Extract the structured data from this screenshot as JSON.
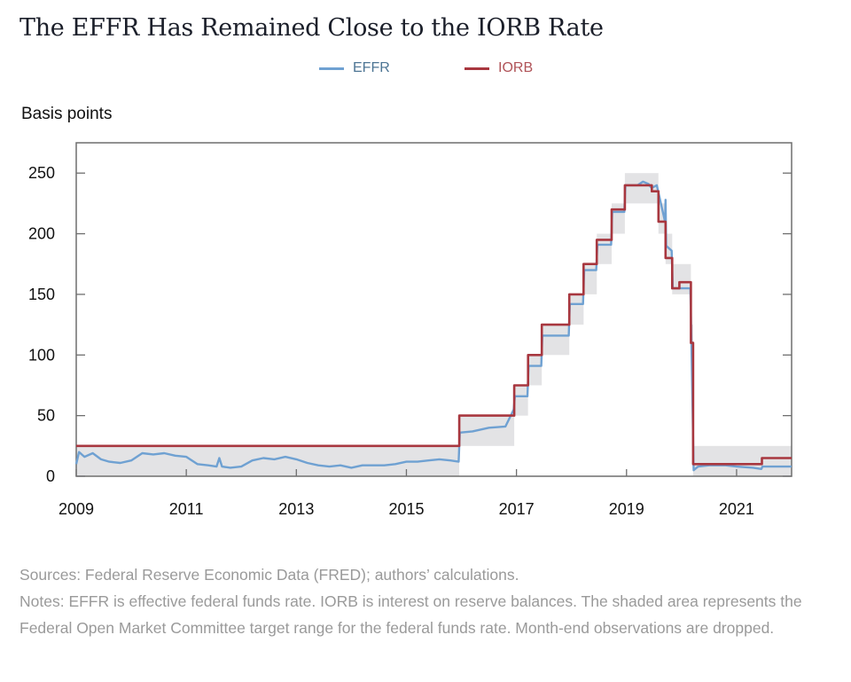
{
  "title": "The EFFR Has Remained Close to the IORB Rate",
  "legend": [
    {
      "label": "EFFR",
      "color": "#6fa1d2",
      "text_color": "#4d7594"
    },
    {
      "label": "IORB",
      "color": "#a8373f",
      "text_color": "#b05358"
    }
  ],
  "sources": "Sources: Federal Reserve Economic Data (FRED); authors’ calculations.",
  "notes": "Notes: EFFR is effective federal funds rate. IORB is interest on reserve balances. The shaded area represents the Federal Open Market Committee target range for the federal funds rate. Month-end observations are dropped.",
  "chart_data": {
    "type": "line",
    "title": "The EFFR Has Remained Close to the IORB Rate",
    "xlabel": "",
    "ylabel": "Basis points",
    "xlim": [
      2009.0,
      2022.0
    ],
    "ylim": [
      0,
      275
    ],
    "x_ticks": [
      2009,
      2011,
      2013,
      2015,
      2017,
      2019,
      2021
    ],
    "y_ticks": [
      0,
      50,
      100,
      150,
      200,
      250
    ],
    "grid": false,
    "legend_position": "top-center",
    "target_range": [
      {
        "start": 2009.0,
        "end": 2015.96,
        "low": 0,
        "high": 25
      },
      {
        "start": 2015.96,
        "end": 2016.96,
        "low": 25,
        "high": 50
      },
      {
        "start": 2016.96,
        "end": 2017.21,
        "low": 50,
        "high": 75
      },
      {
        "start": 2017.21,
        "end": 2017.46,
        "low": 75,
        "high": 100
      },
      {
        "start": 2017.46,
        "end": 2017.96,
        "low": 100,
        "high": 125
      },
      {
        "start": 2017.96,
        "end": 2018.22,
        "low": 125,
        "high": 150
      },
      {
        "start": 2018.22,
        "end": 2018.46,
        "low": 150,
        "high": 175
      },
      {
        "start": 2018.46,
        "end": 2018.73,
        "low": 175,
        "high": 200
      },
      {
        "start": 2018.73,
        "end": 2018.97,
        "low": 200,
        "high": 225
      },
      {
        "start": 2018.97,
        "end": 2019.58,
        "low": 225,
        "high": 250
      },
      {
        "start": 2019.58,
        "end": 2019.71,
        "low": 200,
        "high": 225
      },
      {
        "start": 2019.71,
        "end": 2019.83,
        "low": 175,
        "high": 200
      },
      {
        "start": 2019.83,
        "end": 2020.17,
        "low": 150,
        "high": 175
      },
      {
        "start": 2020.17,
        "end": 2020.21,
        "low": 100,
        "high": 125
      },
      {
        "start": 2020.21,
        "end": 2022.0,
        "low": 0,
        "high": 25
      }
    ],
    "series": [
      {
        "name": "IORB",
        "color": "#a8373f",
        "x": [
          2009.0,
          2015.96,
          2015.96,
          2016.96,
          2016.96,
          2017.21,
          2017.21,
          2017.46,
          2017.46,
          2017.96,
          2017.96,
          2018.22,
          2018.22,
          2018.46,
          2018.46,
          2018.73,
          2018.73,
          2018.97,
          2018.97,
          2019.46,
          2019.46,
          2019.58,
          2019.58,
          2019.71,
          2019.71,
          2019.83,
          2019.83,
          2019.96,
          2019.96,
          2020.17,
          2020.17,
          2020.21,
          2020.21,
          2021.46,
          2021.46,
          2022.0
        ],
        "values": [
          25,
          25,
          50,
          50,
          75,
          75,
          100,
          100,
          125,
          125,
          150,
          150,
          175,
          175,
          195,
          195,
          220,
          220,
          240,
          240,
          235,
          235,
          210,
          210,
          180,
          180,
          155,
          155,
          160,
          160,
          110,
          110,
          10,
          10,
          15,
          15
        ]
      },
      {
        "name": "EFFR",
        "color": "#6fa1d2",
        "x": [
          2009.0,
          2009.05,
          2009.15,
          2009.3,
          2009.45,
          2009.6,
          2009.8,
          2010.0,
          2010.2,
          2010.4,
          2010.6,
          2010.8,
          2011.0,
          2011.2,
          2011.4,
          2011.55,
          2011.6,
          2011.65,
          2011.8,
          2012.0,
          2012.2,
          2012.4,
          2012.6,
          2012.8,
          2013.0,
          2013.2,
          2013.4,
          2013.6,
          2013.8,
          2014.0,
          2014.2,
          2014.4,
          2014.6,
          2014.8,
          2015.0,
          2015.2,
          2015.4,
          2015.6,
          2015.8,
          2015.95,
          2015.97,
          2016.2,
          2016.5,
          2016.8,
          2016.95,
          2016.97,
          2017.2,
          2017.22,
          2017.45,
          2017.47,
          2017.95,
          2017.97,
          2018.21,
          2018.23,
          2018.45,
          2018.47,
          2018.72,
          2018.74,
          2018.96,
          2018.98,
          2019.2,
          2019.3,
          2019.4,
          2019.45,
          2019.47,
          2019.55,
          2019.6,
          2019.7,
          2019.71,
          2019.72,
          2019.82,
          2019.84,
          2020.0,
          2020.16,
          2020.18,
          2020.22,
          2020.3,
          2020.5,
          2020.8,
          2021.0,
          2021.3,
          2021.45,
          2021.47,
          2021.7,
          2022.0
        ],
        "values": [
          10,
          20,
          16,
          19,
          14,
          12,
          11,
          13,
          19,
          18,
          19,
          17,
          16,
          10,
          9,
          8,
          15,
          8,
          7,
          8,
          13,
          15,
          14,
          16,
          14,
          11,
          9,
          8,
          9,
          7,
          9,
          9,
          9,
          10,
          12,
          12,
          13,
          14,
          13,
          12,
          36,
          37,
          40,
          41,
          55,
          66,
          66,
          91,
          91,
          116,
          116,
          142,
          142,
          170,
          170,
          191,
          191,
          218,
          218,
          240,
          240,
          243,
          241,
          238,
          238,
          240,
          230,
          210,
          228,
          190,
          186,
          155,
          155,
          155,
          110,
          5,
          8,
          9,
          9,
          8,
          7,
          6,
          8,
          8,
          8
        ]
      }
    ]
  }
}
